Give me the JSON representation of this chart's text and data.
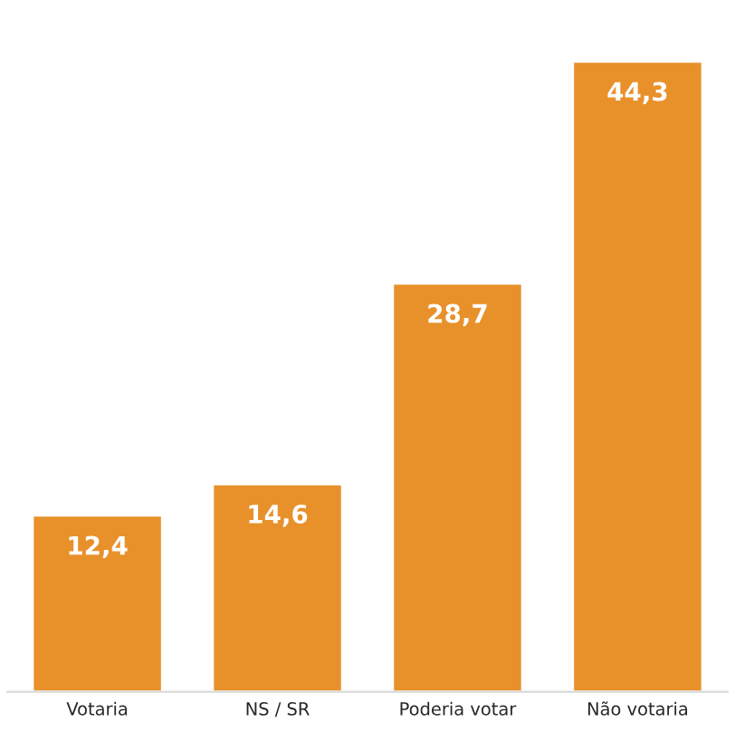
{
  "chart_data": {
    "type": "bar",
    "categories": [
      "Votaria",
      "NS / SR",
      "Poderia votar",
      "Não votaria"
    ],
    "values": [
      12.4,
      14.6,
      28.7,
      44.3
    ],
    "value_labels": [
      "12,4",
      "14,6",
      "28,7",
      "44,3"
    ],
    "color": "#e8912b",
    "grid": false,
    "legend": false
  }
}
